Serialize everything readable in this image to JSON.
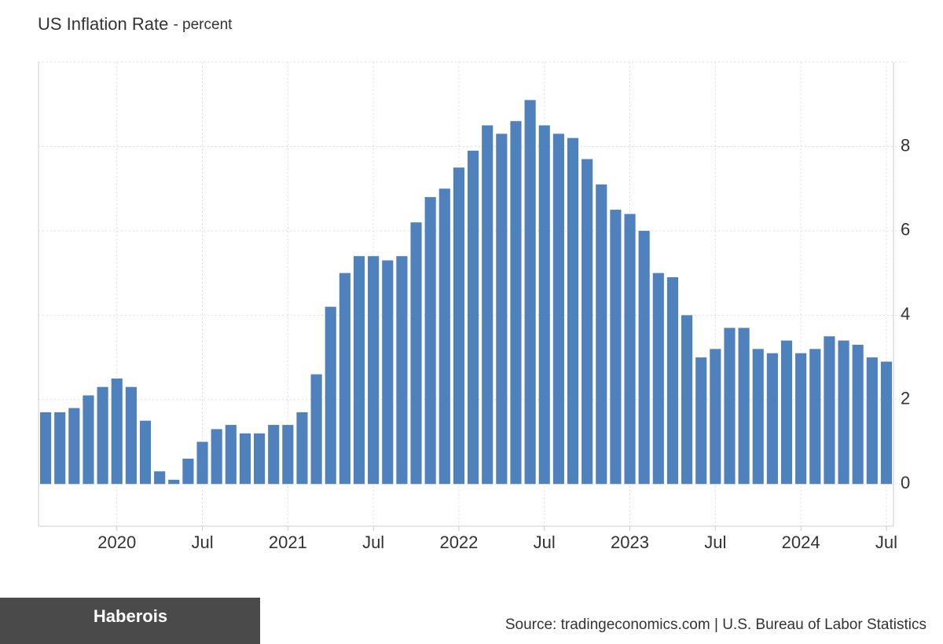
{
  "chart_data": {
    "type": "bar",
    "title": "US Inflation Rate",
    "subtitle": "- percent",
    "categories": [
      null,
      null,
      null,
      null,
      null,
      "2020",
      null,
      null,
      null,
      null,
      null,
      "Jul",
      null,
      null,
      null,
      null,
      null,
      "2021",
      null,
      null,
      null,
      null,
      null,
      "Jul",
      null,
      null,
      null,
      null,
      null,
      "2022",
      null,
      null,
      null,
      null,
      null,
      "Jul",
      null,
      null,
      null,
      null,
      null,
      "2023",
      null,
      null,
      null,
      null,
      null,
      "Jul",
      null,
      null,
      null,
      null,
      null,
      "2024",
      null,
      null,
      null,
      null,
      null,
      "Jul"
    ],
    "values": [
      1.7,
      1.7,
      1.8,
      2.1,
      2.3,
      2.5,
      2.3,
      1.5,
      0.3,
      0.1,
      0.6,
      1.0,
      1.3,
      1.4,
      1.2,
      1.2,
      1.4,
      1.4,
      1.7,
      2.6,
      4.2,
      5.0,
      5.4,
      5.4,
      5.3,
      5.4,
      6.2,
      6.8,
      7.0,
      7.5,
      7.9,
      8.5,
      8.3,
      8.6,
      9.1,
      8.5,
      8.3,
      8.2,
      7.7,
      7.1,
      6.5,
      6.4,
      6.0,
      5.0,
      4.9,
      4.0,
      3.0,
      3.2,
      3.7,
      3.7,
      3.2,
      3.1,
      3.4,
      3.1,
      3.2,
      3.5,
      3.4,
      3.3,
      3.0,
      2.9
    ],
    "color": "#4f81bd",
    "ylim": [
      -1,
      10
    ],
    "yticks": [
      0,
      2,
      4,
      6,
      8
    ],
    "grid": true,
    "brand": "Haberois",
    "source": "Source: tradingeconomics.com | U.S. Bureau of Labor Statistics"
  }
}
